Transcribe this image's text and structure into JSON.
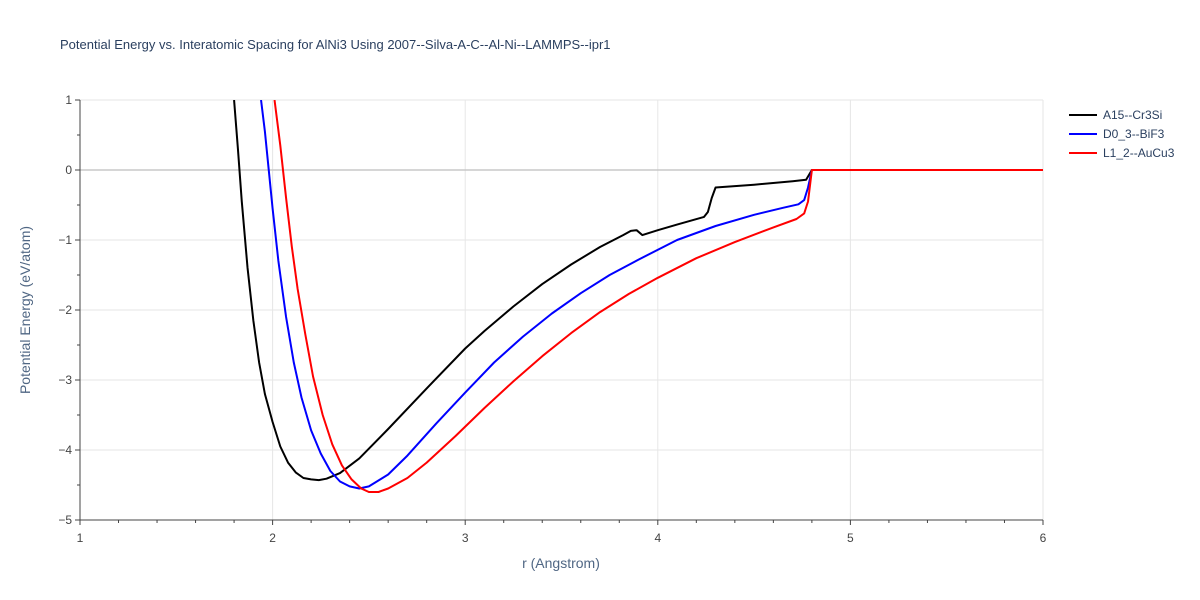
{
  "chart_data": {
    "type": "line",
    "title": "Potential Energy vs. Interatomic Spacing for AlNi3 Using 2007--Silva-A-C--Al-Ni--LAMMPS--ipr1",
    "xlabel": "r (Angstrom)",
    "ylabel": "Potential Energy (eV/atom)",
    "xlim": [
      1,
      6
    ],
    "ylim": [
      -5,
      1
    ],
    "xticks": [
      1,
      2,
      3,
      4,
      5,
      6
    ],
    "yticks": [
      1,
      0,
      -1,
      -2,
      -3,
      -4,
      -5
    ],
    "ytick_labels": [
      "1",
      "0",
      "−1",
      "−2",
      "−3",
      "−4",
      "−5"
    ],
    "grid": true,
    "legend_position": "top-right",
    "series": [
      {
        "name": "A15--Cr3Si",
        "color": "#000000",
        "points": [
          [
            1.8,
            1.0
          ],
          [
            1.82,
            0.3
          ],
          [
            1.84,
            -0.45
          ],
          [
            1.87,
            -1.4
          ],
          [
            1.9,
            -2.15
          ],
          [
            1.93,
            -2.75
          ],
          [
            1.96,
            -3.2
          ],
          [
            2.0,
            -3.6
          ],
          [
            2.04,
            -3.95
          ],
          [
            2.08,
            -4.18
          ],
          [
            2.12,
            -4.32
          ],
          [
            2.16,
            -4.4
          ],
          [
            2.2,
            -4.42
          ],
          [
            2.24,
            -4.43
          ],
          [
            2.28,
            -4.41
          ],
          [
            2.35,
            -4.33
          ],
          [
            2.45,
            -4.12
          ],
          [
            2.6,
            -3.7
          ],
          [
            2.8,
            -3.12
          ],
          [
            3.0,
            -2.55
          ],
          [
            3.1,
            -2.3
          ],
          [
            3.25,
            -1.95
          ],
          [
            3.4,
            -1.63
          ],
          [
            3.55,
            -1.35
          ],
          [
            3.7,
            -1.1
          ],
          [
            3.82,
            -0.93
          ],
          [
            3.86,
            -0.87
          ],
          [
            3.89,
            -0.86
          ],
          [
            3.92,
            -0.93
          ],
          [
            4.0,
            -0.86
          ],
          [
            4.1,
            -0.78
          ],
          [
            4.24,
            -0.67
          ],
          [
            4.26,
            -0.6
          ],
          [
            4.28,
            -0.4
          ],
          [
            4.3,
            -0.25
          ],
          [
            4.5,
            -0.21
          ],
          [
            4.7,
            -0.16
          ],
          [
            4.77,
            -0.14
          ],
          [
            4.8,
            0.0
          ],
          [
            6.0,
            0.0
          ]
        ]
      },
      {
        "name": "D0_3--BiF3",
        "color": "#0000ff",
        "points": [
          [
            1.94,
            1.0
          ],
          [
            1.96,
            0.55
          ],
          [
            1.98,
            0.0
          ],
          [
            2.0,
            -0.55
          ],
          [
            2.03,
            -1.3
          ],
          [
            2.07,
            -2.1
          ],
          [
            2.11,
            -2.75
          ],
          [
            2.15,
            -3.25
          ],
          [
            2.2,
            -3.72
          ],
          [
            2.25,
            -4.05
          ],
          [
            2.3,
            -4.3
          ],
          [
            2.35,
            -4.45
          ],
          [
            2.4,
            -4.52
          ],
          [
            2.45,
            -4.55
          ],
          [
            2.5,
            -4.52
          ],
          [
            2.6,
            -4.35
          ],
          [
            2.7,
            -4.08
          ],
          [
            2.85,
            -3.62
          ],
          [
            3.0,
            -3.18
          ],
          [
            3.15,
            -2.75
          ],
          [
            3.3,
            -2.38
          ],
          [
            3.45,
            -2.05
          ],
          [
            3.6,
            -1.76
          ],
          [
            3.75,
            -1.5
          ],
          [
            3.9,
            -1.28
          ],
          [
            4.1,
            -1.0
          ],
          [
            4.3,
            -0.8
          ],
          [
            4.5,
            -0.64
          ],
          [
            4.65,
            -0.54
          ],
          [
            4.73,
            -0.49
          ],
          [
            4.76,
            -0.43
          ],
          [
            4.78,
            -0.25
          ],
          [
            4.8,
            0.0
          ],
          [
            6.0,
            0.0
          ]
        ]
      },
      {
        "name": "L1_2--AuCu3",
        "color": "#ff0000",
        "points": [
          [
            2.01,
            1.0
          ],
          [
            2.04,
            0.35
          ],
          [
            2.07,
            -0.4
          ],
          [
            2.1,
            -1.1
          ],
          [
            2.13,
            -1.7
          ],
          [
            2.17,
            -2.35
          ],
          [
            2.21,
            -2.95
          ],
          [
            2.26,
            -3.5
          ],
          [
            2.31,
            -3.92
          ],
          [
            2.36,
            -4.22
          ],
          [
            2.41,
            -4.42
          ],
          [
            2.46,
            -4.55
          ],
          [
            2.5,
            -4.6
          ],
          [
            2.55,
            -4.6
          ],
          [
            2.6,
            -4.55
          ],
          [
            2.7,
            -4.4
          ],
          [
            2.8,
            -4.18
          ],
          [
            2.95,
            -3.8
          ],
          [
            3.1,
            -3.4
          ],
          [
            3.25,
            -3.02
          ],
          [
            3.4,
            -2.66
          ],
          [
            3.55,
            -2.33
          ],
          [
            3.7,
            -2.03
          ],
          [
            3.85,
            -1.77
          ],
          [
            4.0,
            -1.54
          ],
          [
            4.2,
            -1.26
          ],
          [
            4.4,
            -1.03
          ],
          [
            4.6,
            -0.82
          ],
          [
            4.72,
            -0.7
          ],
          [
            4.76,
            -0.62
          ],
          [
            4.78,
            -0.45
          ],
          [
            4.8,
            0.0
          ],
          [
            6.0,
            0.0
          ]
        ]
      }
    ]
  }
}
